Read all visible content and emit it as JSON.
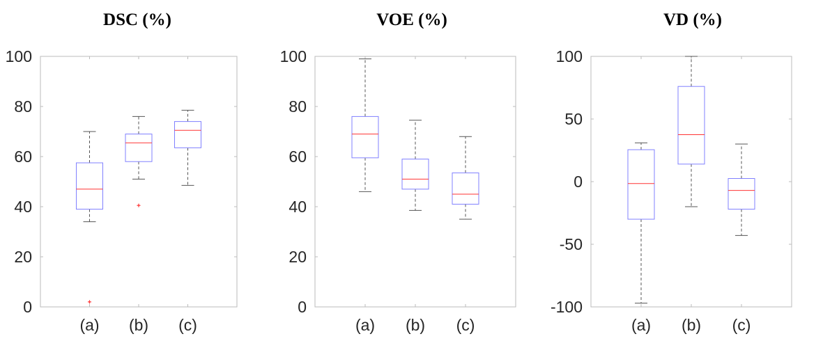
{
  "chart_data": [
    {
      "type": "box",
      "title": "DSC (%)",
      "xlabel": "",
      "ylabel": "",
      "ylim": [
        0,
        100
      ],
      "yticks": [
        0,
        20,
        40,
        60,
        80,
        100
      ],
      "categories": [
        "(a)",
        "(b)",
        "(c)"
      ],
      "boxes": [
        {
          "min": 34,
          "q1": 39,
          "median": 47,
          "q3": 57.5,
          "max": 70,
          "outliers": [
            2
          ]
        },
        {
          "min": 51,
          "q1": 58,
          "median": 65.5,
          "q3": 69,
          "max": 76,
          "outliers": [
            40.5
          ]
        },
        {
          "min": 48.5,
          "q1": 63.5,
          "median": 70.5,
          "q3": 74,
          "max": 78.5,
          "outliers": []
        }
      ]
    },
    {
      "type": "box",
      "title": "VOE (%)",
      "xlabel": "",
      "ylabel": "",
      "ylim": [
        0,
        100
      ],
      "yticks": [
        0,
        20,
        40,
        60,
        80,
        100
      ],
      "categories": [
        "(a)",
        "(b)",
        "(c)"
      ],
      "boxes": [
        {
          "min": 46,
          "q1": 59.5,
          "median": 69,
          "q3": 76,
          "max": 99,
          "outliers": []
        },
        {
          "min": 38.5,
          "q1": 47,
          "median": 51,
          "q3": 59,
          "max": 74.5,
          "outliers": []
        },
        {
          "min": 35,
          "q1": 41,
          "median": 45,
          "q3": 53.5,
          "max": 68,
          "outliers": []
        }
      ]
    },
    {
      "type": "box",
      "title": "VD (%)",
      "xlabel": "",
      "ylabel": "",
      "ylim": [
        -100,
        100
      ],
      "yticks": [
        -100,
        -50,
        0,
        50,
        100
      ],
      "categories": [
        "(a)",
        "(b)",
        "(c)"
      ],
      "boxes": [
        {
          "min": -97,
          "q1": -30,
          "median": -1.5,
          "q3": 25.5,
          "max": 31,
          "outliers": []
        },
        {
          "min": -20,
          "q1": 14,
          "median": 37.5,
          "q3": 76,
          "max": 100,
          "outliers": []
        },
        {
          "min": -43,
          "q1": -22,
          "median": -7,
          "q3": 2.5,
          "max": 30,
          "outliers": []
        }
      ]
    }
  ],
  "colors": {
    "box": "#8080ff",
    "median": "#ff3333",
    "whisker": "#555555",
    "axis": "#bbbbbb",
    "outlier": "#ff3333"
  }
}
